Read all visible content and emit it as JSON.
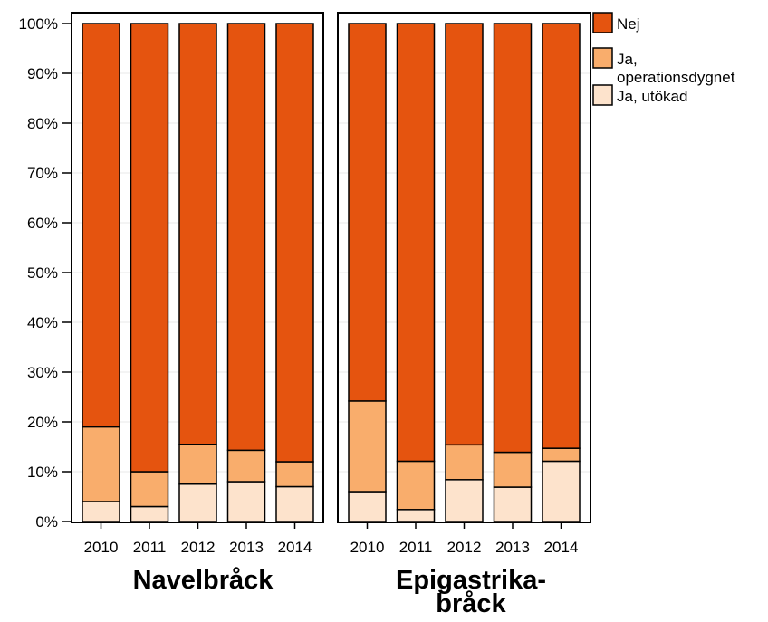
{
  "chart_data": {
    "type": "bar",
    "stacked": true,
    "percent_scale": true,
    "ylim": [
      0,
      100
    ],
    "y_ticks": [
      {
        "value": 0,
        "label": "0%"
      },
      {
        "value": 10,
        "label": "10%"
      },
      {
        "value": 20,
        "label": "20%"
      },
      {
        "value": 30,
        "label": "30%"
      },
      {
        "value": 40,
        "label": "40%"
      },
      {
        "value": 50,
        "label": "50%"
      },
      {
        "value": 60,
        "label": "60%"
      },
      {
        "value": 70,
        "label": "70%"
      },
      {
        "value": 80,
        "label": "80%"
      },
      {
        "value": 90,
        "label": "90%"
      },
      {
        "value": 100,
        "label": "100%"
      }
    ],
    "categories": [
      "2010",
      "2011",
      "2012",
      "2013",
      "2014"
    ],
    "series_names": [
      "Ja, utökad",
      "Ja, operationsdygnet",
      "Nej"
    ],
    "series_colors": [
      "#fde3cc",
      "#f9ad6c",
      "#e5540f"
    ],
    "legend": {
      "placement": "top-right",
      "items": [
        {
          "series": "Nej",
          "lines": [
            "Nej"
          ],
          "color": "#e5540f"
        },
        {
          "series": "Ja, operationsdygnet",
          "lines": [
            "Ja,",
            "operationsdygnet"
          ],
          "color": "#f9ad6c"
        },
        {
          "series": "Ja, utökad",
          "lines": [
            "Ja, utökad"
          ],
          "color": "#fde3cc"
        }
      ]
    },
    "panels": [
      {
        "title_lines": [
          "Navelbråck"
        ],
        "series": [
          {
            "name": "Ja, utökad",
            "values": [
              4,
              3,
              7.5,
              8,
              7
            ]
          },
          {
            "name": "Ja, operationsdygnet",
            "values": [
              15,
              7,
              8,
              6.3,
              5
            ]
          },
          {
            "name": "Nej",
            "values": [
              81,
              90,
              84.5,
              85.7,
              88
            ]
          }
        ]
      },
      {
        "title_lines": [
          "Epigastrika-",
          "bråck"
        ],
        "series": [
          {
            "name": "Ja, utökad",
            "values": [
              6,
              2.4,
              8.4,
              6.9,
              12.1
            ]
          },
          {
            "name": "Ja, operationsdygnet",
            "values": [
              18.2,
              9.7,
              7,
              7,
              2.6
            ]
          },
          {
            "name": "Nej",
            "values": [
              75.8,
              87.9,
              84.6,
              86.1,
              85.3
            ]
          }
        ]
      }
    ]
  }
}
